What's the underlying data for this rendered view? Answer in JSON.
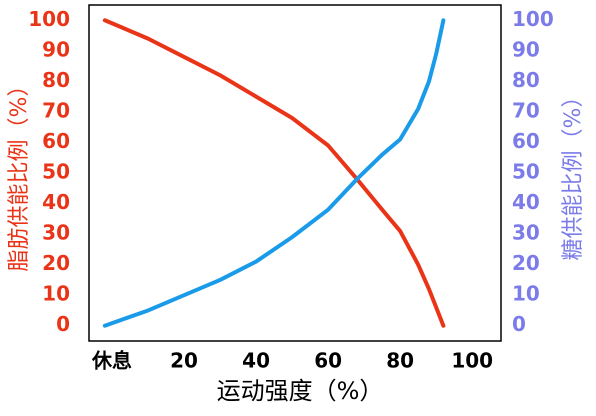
{
  "chart_data": {
    "type": "line",
    "x": [
      -2,
      10,
      20,
      30,
      40,
      50,
      60,
      68,
      75,
      80,
      85,
      88,
      90,
      92
    ],
    "series": [
      {
        "name": "脂肪供能比例（%）",
        "color": "#ea3418",
        "axis": "y",
        "values": [
          100,
          94,
          88,
          82,
          75,
          68,
          59,
          48,
          38,
          31,
          20,
          12,
          6,
          0
        ]
      },
      {
        "name": "糖供能比例（%）",
        "color": "#1a9be9",
        "axis": "y2",
        "values": [
          0,
          5,
          10,
          15,
          21,
          29,
          38,
          48,
          56,
          61,
          71,
          80,
          89,
          100
        ]
      }
    ],
    "xlabel": "运动强度（%）",
    "ylabel": "脂肪供能比例（%）",
    "y2label": "糖供能比例（%）",
    "xlim": [
      -6.4,
      108
    ],
    "xticks": [
      {
        "value": 0,
        "label": "休息"
      },
      20,
      40,
      60,
      80,
      100
    ],
    "ylim": [
      -5,
      105
    ],
    "yticks": [
      0,
      10,
      20,
      30,
      40,
      50,
      60,
      70,
      80,
      90,
      100
    ],
    "y2lim": [
      -5,
      105
    ],
    "y2ticks": [
      0,
      10,
      20,
      30,
      40,
      50,
      60,
      70,
      80,
      90,
      100
    ],
    "ytick_color": "#ea3418",
    "y2tick_color": "#7b7ce9"
  }
}
